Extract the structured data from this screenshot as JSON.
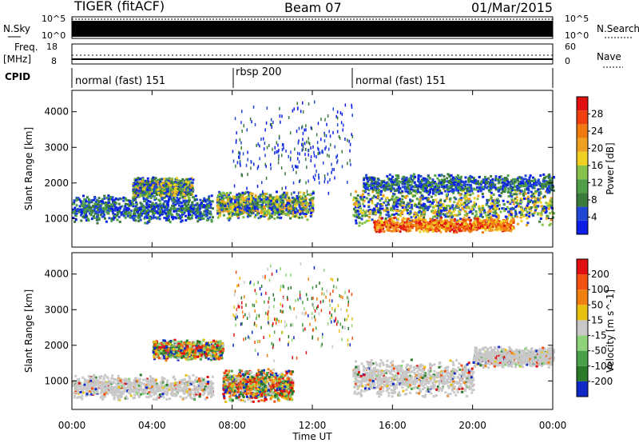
{
  "header": {
    "station": "TIGER (fitACF)",
    "beam": "Beam 07",
    "date": "01/Mar/2015"
  },
  "strips": {
    "nsky_label": "N.Sky",
    "nsearch_label": "N.Search",
    "nsky_ticks": [
      "10^5",
      "10^0"
    ],
    "nsearch_ticks": [
      "10^5",
      "10^0"
    ],
    "freq_label_1": "Freq.",
    "freq_label_2": "[MHz]",
    "freq_ticks": [
      "18",
      "8"
    ],
    "nave_label": "Nave",
    "nave_ticks": [
      "60",
      "0"
    ],
    "cpid_label": "CPID",
    "cpid_segments": [
      {
        "label": "normal (fast) 151",
        "start": 0,
        "end": 7.8
      },
      {
        "label": "rbsp 200",
        "start": 7.8,
        "end": 14.0
      },
      {
        "label": "normal (fast) 151",
        "start": 14.0,
        "end": 24
      }
    ]
  },
  "chart_data": [
    {
      "type": "heatmap",
      "panel": "power",
      "xlabel": "Time UT",
      "ylabel": "Slant Range [km]",
      "xlim": [
        0,
        24
      ],
      "ylim": [
        200,
        4600
      ],
      "x_ticks": [
        "00:00",
        "04:00",
        "08:00",
        "12:00",
        "16:00",
        "20:00",
        "00:00"
      ],
      "y_ticks": [
        1000,
        2000,
        3000,
        4000
      ],
      "colorbar": {
        "label": "Power [dB]",
        "ticks": [
          "4",
          "8",
          "12",
          "16",
          "20",
          "24",
          "28"
        ],
        "colors": [
          "#0b1fe6",
          "#2046d6",
          "#3a7a3a",
          "#4f9f48",
          "#86c24a",
          "#f0d020",
          "#f0a020",
          "#f07a10",
          "#f04010",
          "#e01010"
        ]
      },
      "bands": [
        {
          "t0": 0.0,
          "t1": 7.0,
          "r_center": 1300,
          "r_width": 700,
          "level": "low"
        },
        {
          "t0": 3.0,
          "t1": 6.0,
          "r_center": 1900,
          "r_width": 500,
          "level": "mid"
        },
        {
          "t0": 7.2,
          "t1": 12.0,
          "r_center": 1400,
          "r_width": 700,
          "level": "mid"
        },
        {
          "t0": 14.0,
          "t1": 24.0,
          "r_center": 1350,
          "r_width": 900,
          "level": "mid"
        },
        {
          "t0": 15.0,
          "t1": 22.0,
          "r_center": 850,
          "r_width": 350,
          "level": "high"
        },
        {
          "t0": 14.5,
          "t1": 24.0,
          "r_center": 2000,
          "r_width": 500,
          "level": "low"
        },
        {
          "t0": 8.0,
          "t1": 14.0,
          "r_center": 3000,
          "r_width": 2400,
          "level": "sparse"
        }
      ]
    },
    {
      "type": "heatmap",
      "panel": "velocity",
      "xlabel": "Time UT",
      "ylabel": "Slant Range [km]",
      "xlim": [
        0,
        24
      ],
      "ylim": [
        200,
        4600
      ],
      "x_ticks": [
        "00:00",
        "04:00",
        "08:00",
        "12:00",
        "16:00",
        "20:00",
        "00:00"
      ],
      "y_ticks": [
        1000,
        2000,
        3000,
        4000
      ],
      "colorbar": {
        "label": "Velocity [m s^-1]",
        "ticks": [
          "200",
          "100",
          "50",
          "15",
          "-15",
          "-50",
          "-100",
          "-200"
        ],
        "colors": [
          "#1028c8",
          "#2a7a2a",
          "#48a048",
          "#8ed27a",
          "#c8c8c8",
          "#e8c010",
          "#f08010",
          "#f05010",
          "#e01010"
        ]
      },
      "bands": [
        {
          "t0": 0.0,
          "t1": 7.0,
          "r_center": 850,
          "r_width": 600,
          "level": "gray"
        },
        {
          "t0": 4.0,
          "t1": 7.5,
          "r_center": 1900,
          "r_width": 500,
          "level": "mixed"
        },
        {
          "t0": 7.5,
          "t1": 11.0,
          "r_center": 900,
          "r_width": 800,
          "level": "mixed"
        },
        {
          "t0": 14.0,
          "t1": 20.0,
          "r_center": 1100,
          "r_width": 900,
          "level": "gray"
        },
        {
          "t0": 20.0,
          "t1": 24.0,
          "r_center": 1700,
          "r_width": 500,
          "level": "gray"
        },
        {
          "t0": 8.0,
          "t1": 14.0,
          "r_center": 3000,
          "r_width": 2400,
          "level": "sparse"
        }
      ]
    }
  ]
}
